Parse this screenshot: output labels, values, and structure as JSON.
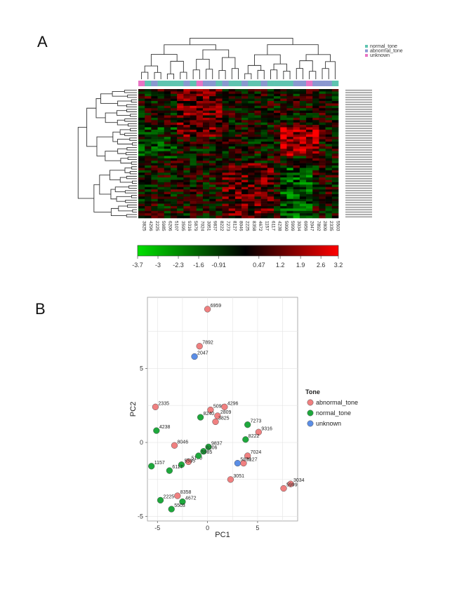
{
  "panels": {
    "a": "A",
    "b": "B"
  },
  "chart_data": [
    {
      "type": "heatmap",
      "group_legend": [
        {
          "label": "normal_tone",
          "color": "#5fc4b0"
        },
        {
          "label": "abnormal_tone",
          "color": "#8a98d0"
        },
        {
          "label": "unknown",
          "color": "#e874c4"
        }
      ],
      "columns": [
        "3825",
        "4296",
        "2225",
        "5985",
        "6206",
        "5107",
        "3595",
        "9316",
        "5879",
        "7024",
        "3051",
        "9837",
        "8222",
        "7273",
        "8127",
        "8046",
        "2225",
        "8358",
        "4672",
        "1157",
        "6117",
        "4238",
        "5090",
        "5999",
        "3034",
        "6959",
        "2047",
        "7892",
        "2809",
        "2335",
        "5503"
      ],
      "column_groups": [
        "unknown",
        "normal_tone",
        "abnormal_tone",
        "normal_tone",
        "normal_tone",
        "normal_tone",
        "normal_tone",
        "abnormal_tone",
        "normal_tone",
        "unknown",
        "abnormal_tone",
        "abnormal_tone",
        "normal_tone",
        "abnormal_tone",
        "normal_tone",
        "normal_tone",
        "abnormal_tone",
        "normal_tone",
        "normal_tone",
        "abnormal_tone",
        "normal_tone",
        "normal_tone",
        "normal_tone",
        "normal_tone",
        "abnormal_tone",
        "abnormal_tone",
        "unknown",
        "abnormal_tone",
        "abnormal_tone",
        "abnormal_tone",
        "normal_tone"
      ],
      "n_rows": 54,
      "color_scale": {
        "min": -3.7,
        "max": 3.2,
        "low_color": "#00e000",
        "mid_color": "#000000",
        "high_color": "#ff0000",
        "ticks": [
          "-3.7",
          "-3",
          "-2.3",
          "-1.6",
          "-0.91",
          "0.47",
          "1.2",
          "1.9",
          "2.6",
          "3.2"
        ]
      }
    },
    {
      "type": "scatter",
      "xlabel": "PC1",
      "ylabel": "PC2",
      "xlim": [
        -6,
        9
      ],
      "ylim": [
        -5.3,
        9.8
      ],
      "x_ticks": [
        "-5",
        "0",
        "5"
      ],
      "y_ticks": [
        "-5",
        "0",
        "5"
      ],
      "legend_title": "Tone",
      "legend_position": "right",
      "grid": true,
      "series": [
        {
          "name": "abnormal_tone",
          "color": "#f08080",
          "points": [
            {
              "label": "6959",
              "x": 0.0,
              "y": 9.0
            },
            {
              "label": "7892",
              "x": -0.8,
              "y": 6.5
            },
            {
              "label": "2335",
              "x": -5.2,
              "y": 2.4
            },
            {
              "label": "5090",
              "x": 0.3,
              "y": 2.2
            },
            {
              "label": "4296",
              "x": 1.7,
              "y": 2.4
            },
            {
              "label": "2809",
              "x": 1.0,
              "y": 1.8
            },
            {
              "label": "3825",
              "x": 0.8,
              "y": 1.4
            },
            {
              "label": "9316",
              "x": 5.1,
              "y": 0.7
            },
            {
              "label": "8046",
              "x": -3.3,
              "y": -0.2
            },
            {
              "label": "5170",
              "x": -1.9,
              "y": -1.3
            },
            {
              "label": "7024",
              "x": 4.0,
              "y": -0.9
            },
            {
              "label": "6127",
              "x": 3.6,
              "y": -1.4
            },
            {
              "label": "3051",
              "x": 2.3,
              "y": -2.5
            },
            {
              "label": "3034",
              "x": 8.3,
              "y": -2.8
            },
            {
              "label": "5999",
              "x": 7.6,
              "y": -3.1
            },
            {
              "label": "8358",
              "x": -3.0,
              "y": -3.6
            }
          ]
        },
        {
          "name": "normal_tone",
          "color": "#1ea83c",
          "points": [
            {
              "label": "8240",
              "x": -0.7,
              "y": 1.7
            },
            {
              "label": "4238",
              "x": -5.1,
              "y": 0.8
            },
            {
              "label": "7273",
              "x": 4.0,
              "y": 1.2
            },
            {
              "label": "8222",
              "x": 3.8,
              "y": 0.2
            },
            {
              "label": "9837",
              "x": 0.1,
              "y": -0.3
            },
            {
              "label": "6206",
              "x": -0.4,
              "y": -0.6
            },
            {
              "label": "5985",
              "x": -0.9,
              "y": -0.9
            },
            {
              "label": "5595",
              "x": -2.6,
              "y": -1.5
            },
            {
              "label": "1157",
              "x": -5.6,
              "y": -1.6
            },
            {
              "label": "6117",
              "x": -3.8,
              "y": -1.9
            },
            {
              "label": "2225",
              "x": -4.7,
              "y": -3.9
            },
            {
              "label": "4672",
              "x": -2.5,
              "y": -4.0
            },
            {
              "label": "5503",
              "x": -3.6,
              "y": -4.5
            }
          ]
        },
        {
          "name": "unknown",
          "color": "#5b8ee6",
          "points": [
            {
              "label": "2047",
              "x": -1.3,
              "y": 5.8
            },
            {
              "label": "5879",
              "x": 3.0,
              "y": -1.4
            }
          ]
        }
      ]
    }
  ]
}
